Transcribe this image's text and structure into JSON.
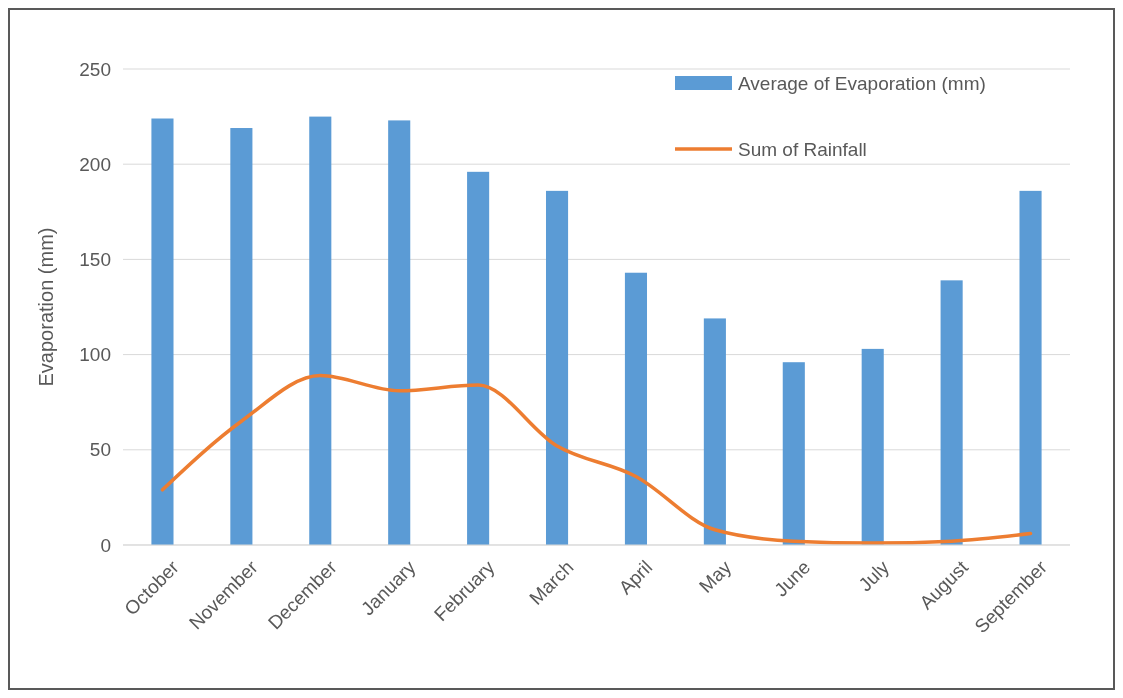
{
  "chart_data": {
    "type": "bar",
    "ylabel": "Evaporation (mm)",
    "categories": [
      "October",
      "November",
      "December",
      "January",
      "February",
      "March",
      "April",
      "May",
      "June",
      "July",
      "August",
      "September"
    ],
    "series": [
      {
        "name": "Average of Evaporation (mm)",
        "color": "#5b9bd5",
        "values": [
          224,
          219,
          225,
          223,
          196,
          186,
          143,
          119,
          96,
          103,
          139,
          186
        ]
      },
      {
        "name": "Sum of Rainfall",
        "type": "line",
        "color": "#ed7d31",
        "values": [
          29,
          65,
          89,
          81,
          84,
          52,
          36,
          8,
          2,
          1,
          2,
          6
        ]
      }
    ],
    "ylim": [
      0,
      250
    ],
    "yticks": [
      0,
      50,
      100,
      150,
      200,
      250
    ],
    "grid": "y",
    "legend": "top right"
  }
}
